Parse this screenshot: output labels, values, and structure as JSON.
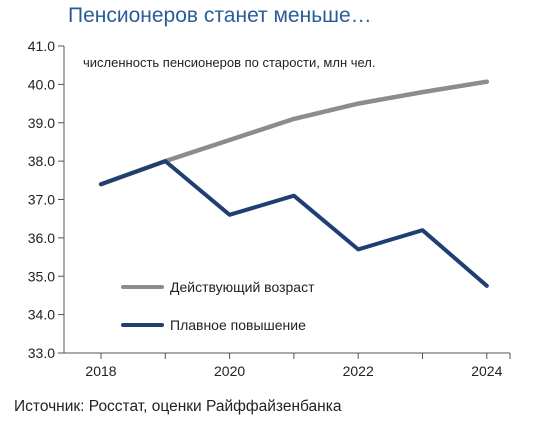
{
  "title": "Пенсионеров станет меньше…",
  "source": "Источник: Росстат, оценки Райффайзенбанка",
  "chart_data": {
    "type": "line",
    "annotation": "численность пенсионеров по старости, млн чел.",
    "x": [
      2018,
      2019,
      2020,
      2021,
      2022,
      2023,
      2024
    ],
    "x_ticks": [
      "2018",
      "2020",
      "2022",
      "2024"
    ],
    "y_ticks": [
      "33.0",
      "34.0",
      "35.0",
      "36.0",
      "37.0",
      "38.0",
      "39.0",
      "40.0",
      "41.0"
    ],
    "ylim": [
      33,
      41
    ],
    "grid": false,
    "legend_position": "bottom-left",
    "series": [
      {
        "name": "Действующий возраст",
        "color": "#8c8c8c",
        "values": [
          37.4,
          38.0,
          38.55,
          39.1,
          39.5,
          39.8,
          40.07
        ]
      },
      {
        "name": "Плавное повышение",
        "color": "#1f3f73",
        "values": [
          37.4,
          38.0,
          36.6,
          37.1,
          35.7,
          36.2,
          34.75
        ]
      }
    ]
  }
}
